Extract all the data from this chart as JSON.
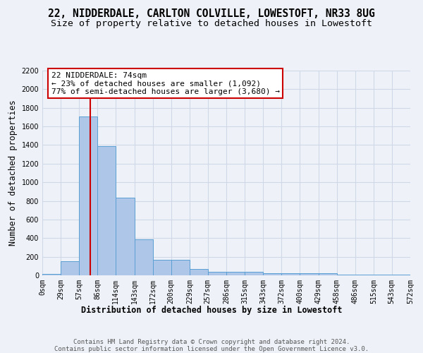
{
  "title": "22, NIDDERDALE, CARLTON COLVILLE, LOWESTOFT, NR33 8UG",
  "subtitle": "Size of property relative to detached houses in Lowestoft",
  "xlabel": "Distribution of detached houses by size in Lowestoft",
  "ylabel": "Number of detached properties",
  "bar_color": "#aec6e8",
  "bar_edge_color": "#5a9fd4",
  "bin_edges": [
    0,
    29,
    57,
    86,
    114,
    143,
    172,
    200,
    229,
    257,
    286,
    315,
    343,
    372,
    400,
    429,
    458,
    486,
    515,
    543,
    572
  ],
  "bar_heights": [
    15,
    155,
    1710,
    1390,
    835,
    390,
    170,
    170,
    70,
    35,
    35,
    35,
    25,
    25,
    25,
    20,
    10,
    10,
    5,
    5
  ],
  "ylim": [
    0,
    2200
  ],
  "yticks": [
    0,
    200,
    400,
    600,
    800,
    1000,
    1200,
    1400,
    1600,
    1800,
    2000,
    2200
  ],
  "xtick_labels": [
    "0sqm",
    "29sqm",
    "57sqm",
    "86sqm",
    "114sqm",
    "143sqm",
    "172sqm",
    "200sqm",
    "229sqm",
    "257sqm",
    "286sqm",
    "315sqm",
    "343sqm",
    "372sqm",
    "400sqm",
    "429sqm",
    "458sqm",
    "486sqm",
    "515sqm",
    "543sqm",
    "572sqm"
  ],
  "property_size": 74,
  "red_line_color": "#cc0000",
  "annotation_text": "22 NIDDERDALE: 74sqm\n← 23% of detached houses are smaller (1,092)\n77% of semi-detached houses are larger (3,680) →",
  "annotation_box_color": "#ffffff",
  "annotation_box_edge_color": "#cc0000",
  "grid_color": "#d0d8e8",
  "background_color": "#eef2f8",
  "footer_text": "Contains HM Land Registry data © Crown copyright and database right 2024.\nContains public sector information licensed under the Open Government Licence v3.0.",
  "title_fontsize": 10.5,
  "subtitle_fontsize": 9.5,
  "xlabel_fontsize": 8.5,
  "ylabel_fontsize": 8.5,
  "tick_fontsize": 7,
  "annotation_fontsize": 8,
  "footer_fontsize": 6.5
}
